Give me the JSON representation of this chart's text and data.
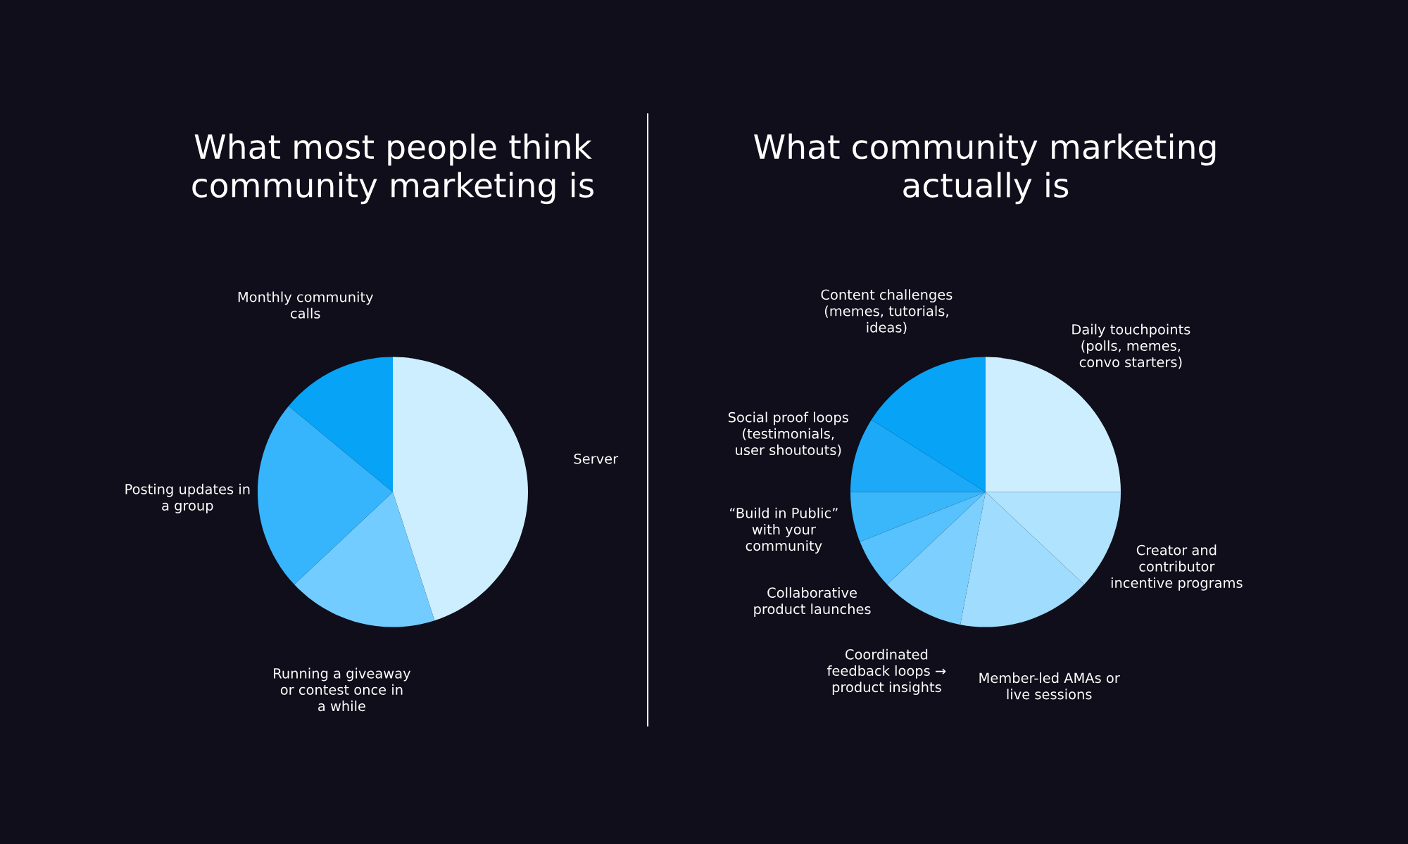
{
  "chart_data": [
    {
      "type": "pie",
      "title": "What most people think community marketing is",
      "categories": [
        "Server",
        "Running a giveaway or contest once in a while",
        "Posting updates in a group",
        "Monthly community calls"
      ],
      "values": [
        45,
        18,
        23,
        14
      ],
      "colors": [
        "#cdeeff",
        "#73ccff",
        "#36b4fc",
        "#07a3f7"
      ],
      "legend": false
    },
    {
      "type": "pie",
      "title": "What community marketing actually is",
      "categories": [
        "Daily touchpoints (polls, memes, convo starters)",
        "Creator and contributor incentive programs",
        "Member-led AMAs or live sessions",
        "Coordinated feedback loops → product insights",
        "Collaborative product launches",
        "“Build in Public” with your community",
        "Social proof loops (testimonials, user shoutouts)",
        "Content challenges (memes, tutorials, ideas)"
      ],
      "values": [
        25,
        12,
        16,
        10,
        6,
        6,
        9,
        16
      ],
      "colors": [
        "#cdeeff",
        "#b0e4fe",
        "#9fdcfd",
        "#7dd0fe",
        "#57c2fd",
        "#3ab6fb",
        "#1ba9f8",
        "#07a3f7"
      ],
      "legend": false
    }
  ]
}
